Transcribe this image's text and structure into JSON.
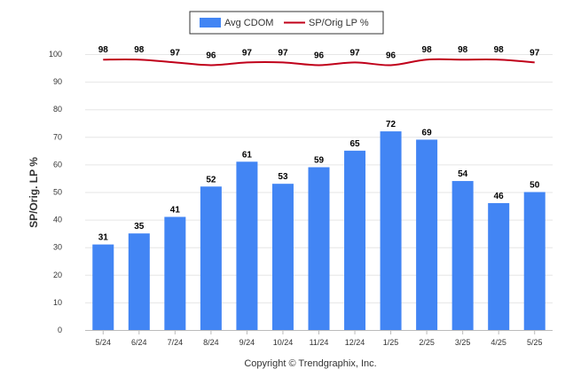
{
  "chart_data": {
    "type": "bar",
    "categories": [
      "5/24",
      "6/24",
      "7/24",
      "8/24",
      "9/24",
      "10/24",
      "11/24",
      "12/24",
      "1/25",
      "2/25",
      "3/25",
      "4/25",
      "5/25"
    ],
    "series": [
      {
        "name": "Avg CDOM",
        "type": "bar",
        "color": "#4285f4",
        "values": [
          31,
          35,
          41,
          52,
          61,
          53,
          59,
          65,
          72,
          69,
          54,
          46,
          50
        ]
      },
      {
        "name": "SP/Orig LP %",
        "type": "line",
        "color": "#c0001a",
        "values": [
          98,
          98,
          97,
          96,
          97,
          97,
          96,
          97,
          96,
          98,
          98,
          98,
          97
        ]
      }
    ],
    "title": "",
    "xlabel": "",
    "ylabel": "SP/Orig. LP %",
    "ylim": [
      0,
      100
    ],
    "yticks": [
      0,
      10,
      20,
      30,
      40,
      50,
      60,
      70,
      80,
      90,
      100
    ],
    "grid": true,
    "legend_position": "top-center"
  },
  "footer": {
    "copyright": "Copyright © Trendgraphix, Inc."
  }
}
